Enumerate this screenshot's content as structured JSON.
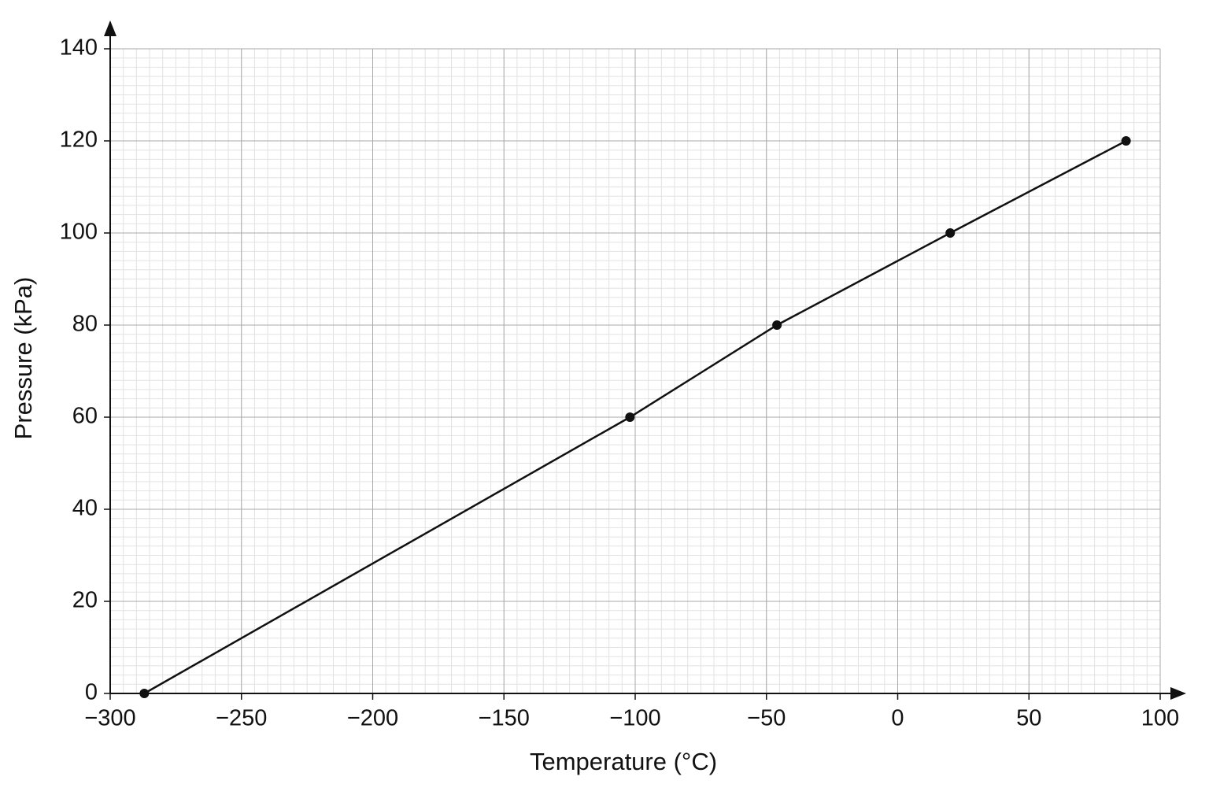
{
  "chart_data": {
    "type": "line",
    "x_label": "Temperature (°C)",
    "y_label": "Pressure (kPa)",
    "x": [
      -287,
      -102,
      -46,
      20,
      87
    ],
    "series": [
      {
        "color": "#111111",
        "values": [
          0,
          60,
          80,
          100,
          120
        ]
      }
    ],
    "xlim": [
      -300,
      100
    ],
    "xticks": [
      {
        "value": -300,
        "label": "−300"
      },
      {
        "value": -250,
        "label": "−250"
      },
      {
        "value": -200,
        "label": "−200"
      },
      {
        "value": -150,
        "label": "−150"
      },
      {
        "value": -100,
        "label": "−100"
      },
      {
        "value": -50,
        "label": "−50"
      },
      0,
      50,
      100
    ],
    "ylim": [
      0,
      140
    ],
    "yticks": [
      0,
      20,
      40,
      60,
      80,
      100,
      120,
      140
    ],
    "grid": true
  }
}
